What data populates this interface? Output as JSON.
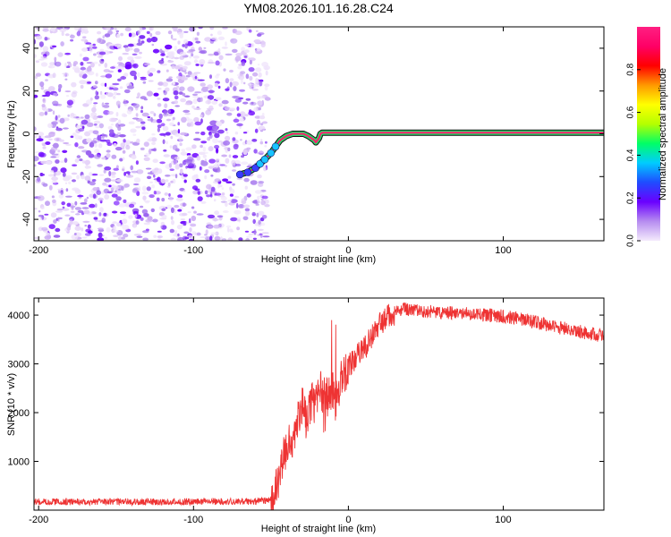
{
  "title": "YM08.2026.101.16.28.C24",
  "chart_data": [
    {
      "type": "heatmap",
      "xlabel": "Height of straight line (km)",
      "ylabel": "Frequency (Hz)",
      "xlim": [
        -203,
        165
      ],
      "ylim": [
        -50,
        50
      ],
      "xticks": [
        -200,
        -100,
        0,
        100
      ],
      "yticks": [
        -40,
        -20,
        0,
        20,
        40
      ],
      "grid": false,
      "noise_region_x": [
        -203,
        -52
      ],
      "ridge": {
        "x": [
          -70,
          -65,
          -60,
          -57,
          -54,
          -50,
          -47,
          -44,
          -40,
          -36,
          -32,
          -29,
          -26,
          -24,
          -22,
          -21,
          -20,
          -19,
          -18,
          -17,
          -15,
          -10,
          0,
          20,
          50,
          100,
          140,
          165
        ],
        "y": [
          -19,
          -18,
          -16,
          -14,
          -12,
          -9,
          -6,
          -3,
          -1,
          0,
          0,
          0,
          -1,
          -2,
          -3,
          -4,
          -3,
          -2,
          0,
          0.5,
          0.5,
          0.5,
          0.5,
          0.5,
          0.5,
          0.5,
          0.5,
          0.5
        ]
      },
      "colorbar": {
        "label": "Normalized spectral amplitude",
        "range": [
          0,
          1
        ],
        "ticks": [
          "0.0",
          "0.2",
          "0.4",
          "0.6",
          "0.8"
        ],
        "colors": [
          "#f4eafc",
          "#b68cf0",
          "#6a00ff",
          "#1f4cff",
          "#00ccff",
          "#00ff66",
          "#b4ff00",
          "#ffff00",
          "#ff9900",
          "#ff0000",
          "#ff0066",
          "#ff1f82"
        ]
      }
    },
    {
      "type": "line",
      "xlabel": "Height of straight line (km)",
      "ylabel": "SNR (10 * v/v)",
      "xlim": [
        -203,
        165
      ],
      "ylim": [
        0,
        4350
      ],
      "xticks": [
        -200,
        -100,
        0,
        100
      ],
      "yticks": [
        1000,
        2000,
        3000,
        4000
      ],
      "grid": false,
      "series": [
        {
          "color": "#ee3333",
          "x": [
            -203,
            -150,
            -100,
            -60,
            -52,
            -47,
            -43,
            -40,
            -36,
            -33,
            -30,
            -27,
            -24,
            -21,
            -18,
            -15,
            -12,
            -10,
            -8,
            -5,
            0,
            5,
            10,
            15,
            20,
            25,
            30,
            35,
            40,
            50,
            60,
            70,
            80,
            90,
            100,
            110,
            120,
            130,
            140,
            150,
            160,
            165
          ],
          "y": [
            170,
            170,
            175,
            180,
            200,
            400,
            900,
            1350,
            1500,
            1750,
            2150,
            1850,
            2250,
            2150,
            2500,
            2300,
            2350,
            2500,
            2200,
            2700,
            2950,
            3150,
            3300,
            3550,
            3800,
            3950,
            4050,
            4120,
            4120,
            4080,
            4060,
            4040,
            4020,
            4000,
            3980,
            3930,
            3860,
            3790,
            3720,
            3660,
            3600,
            3570
          ]
        }
      ]
    }
  ]
}
